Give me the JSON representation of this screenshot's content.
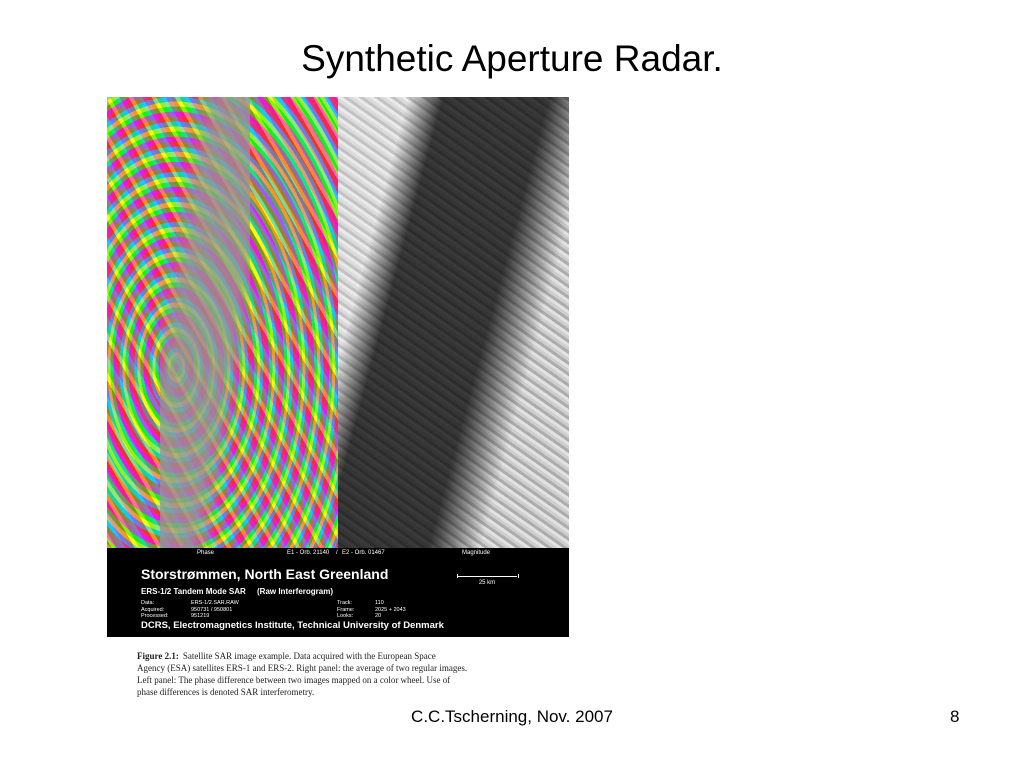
{
  "header": {
    "title": "Synthetic Aperture Radar."
  },
  "figure": {
    "panel_labels": {
      "left": "Phase",
      "orbit1": "E1 - Orb. 21140",
      "separator": "/",
      "orbit2": "E2 - Orb. 01467",
      "right": "Magnitude"
    },
    "banner": {
      "title": "Storstrømmen, North East Greenland",
      "mode": "ERS-1/2 Tandem Mode SAR",
      "kind": "(Raw Interferogram)",
      "scale": "25 km",
      "meta_left": [
        [
          "Data:",
          "ERS-1/2.SAR.RAW"
        ],
        [
          "Acquired:",
          "950731 / 950801"
        ],
        [
          "Processed:",
          "951219"
        ]
      ],
      "meta_right": [
        [
          "Track:",
          "110"
        ],
        [
          "Frame:",
          "2025 + 2043"
        ],
        [
          "Looks:",
          "20"
        ]
      ],
      "institute": "DCRS, Electromagnetics Institute, Technical University of Denmark"
    },
    "caption": {
      "label": "Figure 2.1:",
      "lines": [
        "Satellite SAR image example.  Data acquired with the European Space",
        "Agency (ESA) satellites ERS-1 and ERS-2. Right panel: the average of two regular images.",
        "Left panel: The phase difference between two images mapped on a color wheel.  Use of",
        "phase differences is denoted SAR interferometry."
      ]
    }
  },
  "footer": {
    "author": "C.C.Tscherning, Nov. 2007",
    "page": "8"
  }
}
